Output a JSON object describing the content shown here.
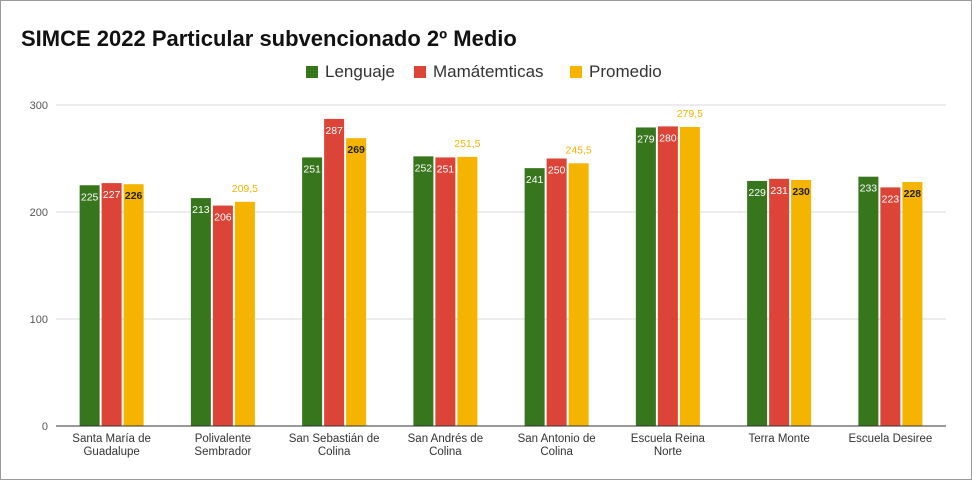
{
  "chart_data": {
    "type": "bar",
    "title": "SIMCE 2022 Particular subvencionado 2º Medio",
    "xlabel": "",
    "ylabel": "",
    "ylim": [
      0,
      300
    ],
    "yticks": [
      "0",
      "100",
      "200",
      "300"
    ],
    "grid": true,
    "legend_position": "top",
    "categories": [
      [
        "Santa María de",
        "Guadalupe"
      ],
      [
        "Polivalente",
        "Sembrador"
      ],
      [
        "San Sebastián de",
        "Colina"
      ],
      [
        "San Andrés de",
        "Colina"
      ],
      [
        "San Antonio de",
        "Colina"
      ],
      [
        "Escuela Reina",
        "Norte"
      ],
      [
        "Terra Monte"
      ],
      [
        "Escuela Desiree"
      ]
    ],
    "series": [
      {
        "name": "Lenguaje",
        "color": "#38761d",
        "values": [
          225,
          213,
          251,
          252,
          241,
          279,
          229,
          233
        ],
        "labels": [
          "225",
          "213",
          "251",
          "252",
          "241",
          "279",
          "229",
          "233"
        ]
      },
      {
        "name": "Mamátemticas",
        "color": "#db4437",
        "values": [
          227,
          206,
          287,
          251,
          250,
          280,
          231,
          223
        ],
        "labels": [
          "227",
          "206",
          "287",
          "251",
          "250",
          "280",
          "231",
          "223"
        ]
      },
      {
        "name": "Promedio",
        "color": "#f4b400",
        "values": [
          226,
          209.5,
          269,
          251.5,
          245.5,
          279.5,
          230,
          228
        ],
        "labels": [
          "226",
          "209,5",
          "269",
          "251,5",
          "245,5",
          "279,5",
          "230",
          "228"
        ]
      }
    ]
  }
}
